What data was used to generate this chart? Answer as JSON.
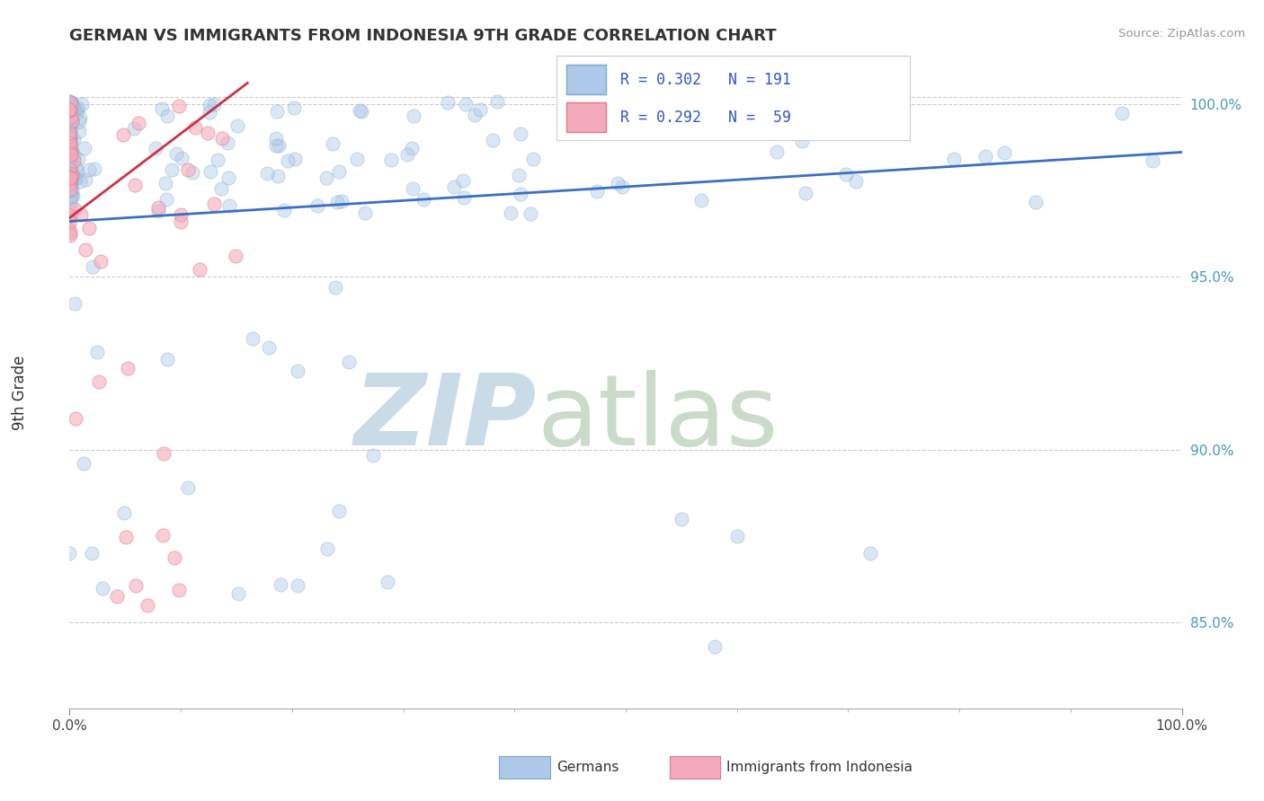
{
  "title": "GERMAN VS IMMIGRANTS FROM INDONESIA 9TH GRADE CORRELATION CHART",
  "source_text": "Source: ZipAtlas.com",
  "ylabel": "9th Grade",
  "R_blue": 0.302,
  "N_blue": 191,
  "R_pink": 0.292,
  "N_pink": 59,
  "blue_color": "#adc8e8",
  "blue_edge": "#7aaac8",
  "pink_color": "#f5aabb",
  "pink_edge": "#e07888",
  "trend_blue": "#3a6fc4",
  "trend_pink": "#cc3344",
  "legend_text_color": "#3355cc",
  "background_color": "#ffffff",
  "grid_color": "#cccccc",
  "x_min": 0.0,
  "x_max": 1.0,
  "y_min": 0.825,
  "y_max": 1.008,
  "right_yticks": [
    0.85,
    0.9,
    0.95,
    1.0
  ],
  "right_yticklabels": [
    "85.0%",
    "90.0%",
    "95.0%",
    "100.0%"
  ],
  "marker_size": 120,
  "alpha_blue": 0.45,
  "alpha_pink": 0.6
}
